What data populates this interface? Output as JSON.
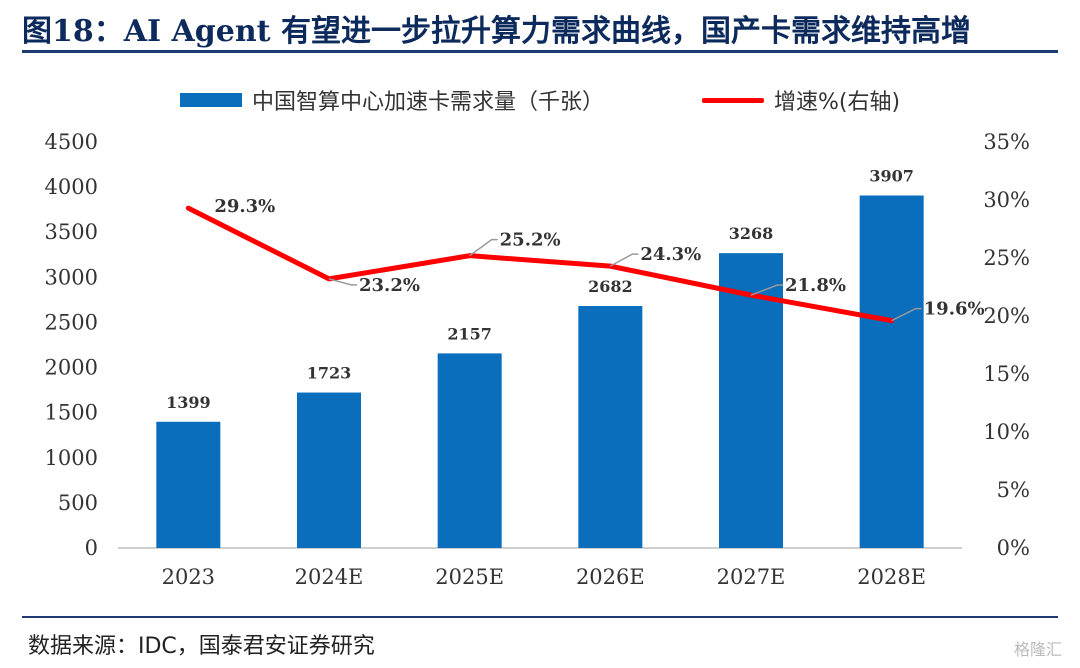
{
  "header": {
    "title": "图18：AI Agent 有望进一步拉升算力需求曲线，国产卡需求维持高增"
  },
  "footer": {
    "source": "数据来源：IDC，国泰君安证券研究",
    "watermark": "格隆汇"
  },
  "colors": {
    "bar": "#0a6ebd",
    "line": "#ff0000",
    "connector": "#9a9a9a",
    "axis_text": "#333333"
  },
  "chart_data": {
    "type": "bar",
    "categories": [
      "2023",
      "2024E",
      "2025E",
      "2026E",
      "2027E",
      "2028E"
    ],
    "series": [
      {
        "name": "中国智算中心加速卡需求量（千张）",
        "type": "bar",
        "axis": "left",
        "values": [
          1399,
          1723,
          2157,
          2682,
          3268,
          3907
        ],
        "labels": [
          "1399",
          "1723",
          "2157",
          "2682",
          "3268",
          "3907"
        ]
      },
      {
        "name": "增速%(右轴)",
        "type": "line",
        "axis": "right",
        "values": [
          29.3,
          23.2,
          25.2,
          24.3,
          21.8,
          19.6
        ],
        "labels": [
          "29.3%",
          "23.2%",
          "25.2%",
          "24.3%",
          "21.8%",
          "19.6%"
        ]
      }
    ],
    "y_left": {
      "range": [
        0,
        4500
      ],
      "ticks": [
        0,
        500,
        1000,
        1500,
        2000,
        2500,
        3000,
        3500,
        4000,
        4500
      ],
      "tick_labels": [
        "0",
        "500",
        "1000",
        "1500",
        "2000",
        "2500",
        "3000",
        "3500",
        "4000",
        "4500"
      ]
    },
    "y_right": {
      "range": [
        0,
        35
      ],
      "ticks": [
        0,
        5,
        10,
        15,
        20,
        25,
        30,
        35
      ],
      "tick_labels": [
        "0%",
        "5%",
        "10%",
        "15%",
        "20%",
        "25%",
        "30%",
        "35%"
      ]
    },
    "grid": false,
    "legend_position": "top"
  }
}
